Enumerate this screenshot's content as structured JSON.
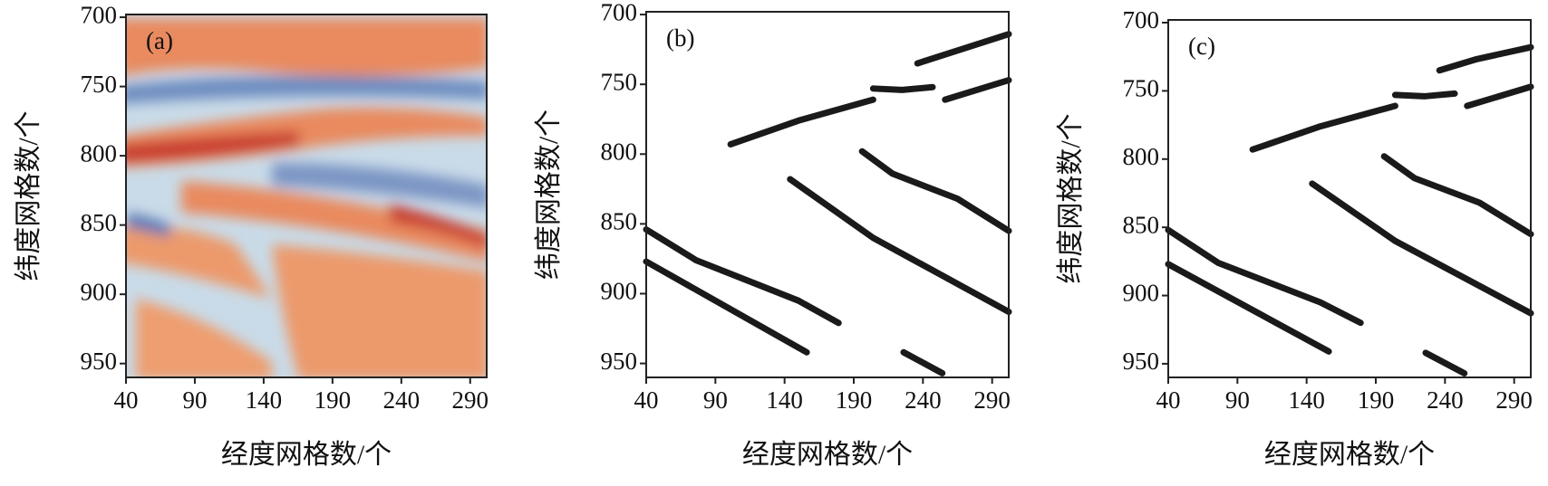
{
  "chart_data": [
    {
      "type": "image",
      "label": "(a)",
      "xlabel": "经度网格数/个",
      "ylabel": "纬度网格数/个",
      "xlim": [
        40,
        302
      ],
      "xticks": [
        40,
        90,
        140,
        190,
        240,
        290
      ],
      "ylim": [
        960,
        698
      ],
      "yticks": [
        700,
        750,
        800,
        850,
        900,
        950
      ]
    },
    {
      "type": "line",
      "label": "(b)",
      "xlabel": "经度网格数/个",
      "ylabel": "纬度网格数/个",
      "color": "#1a1a1a",
      "xlim": [
        40,
        302
      ],
      "xticks": [
        40,
        90,
        140,
        190,
        240,
        290
      ],
      "ylim": [
        960,
        698
      ],
      "yticks": [
        700,
        750,
        800,
        850,
        900,
        950
      ],
      "series": [
        {
          "x": [
            236,
            302
          ],
          "values": [
            735,
            714
          ]
        },
        {
          "x": [
            204,
            225,
            247
          ],
          "values": [
            753,
            754,
            752
          ]
        },
        {
          "x": [
            256,
            302
          ],
          "values": [
            761,
            747
          ]
        },
        {
          "x": [
            101,
            150,
            204
          ],
          "values": [
            793,
            776,
            761
          ]
        },
        {
          "x": [
            40,
            76,
            150,
            179
          ],
          "values": [
            854,
            876,
            905,
            921
          ]
        },
        {
          "x": [
            40,
            156
          ],
          "values": [
            877,
            942
          ]
        },
        {
          "x": [
            144,
            204,
            302
          ],
          "values": [
            818,
            860,
            913
          ]
        },
        {
          "x": [
            196,
            218,
            265,
            302
          ],
          "values": [
            798,
            814,
            832,
            855
          ]
        },
        {
          "x": [
            226,
            254
          ],
          "values": [
            942,
            957
          ]
        }
      ]
    },
    {
      "type": "line",
      "label": "(c)",
      "xlabel": "经度网格数/个",
      "ylabel": "纬度网格数/个",
      "color": "#1a1a1a",
      "xlim": [
        40,
        302
      ],
      "xticks": [
        40,
        90,
        140,
        190,
        240,
        290
      ],
      "ylim": [
        960,
        698
      ],
      "yticks": [
        700,
        750,
        800,
        850,
        900,
        950
      ],
      "series": [
        {
          "x": [
            236,
            262,
            302
          ],
          "values": [
            735,
            727,
            718
          ]
        },
        {
          "x": [
            204,
            225,
            247
          ],
          "values": [
            753,
            754,
            752
          ]
        },
        {
          "x": [
            256,
            302
          ],
          "values": [
            761,
            747
          ]
        },
        {
          "x": [
            101,
            150,
            204
          ],
          "values": [
            793,
            776,
            761
          ]
        },
        {
          "x": [
            40,
            76,
            150,
            179
          ],
          "values": [
            852,
            876,
            905,
            920
          ]
        },
        {
          "x": [
            40,
            156
          ],
          "values": [
            877,
            941
          ]
        },
        {
          "x": [
            144,
            204,
            302
          ],
          "values": [
            818,
            860,
            913
          ]
        },
        {
          "x": [
            196,
            218,
            265,
            302
          ],
          "values": [
            798,
            814,
            832,
            855
          ]
        },
        {
          "x": [
            226,
            254
          ],
          "values": [
            942,
            957
          ]
        }
      ]
    }
  ]
}
